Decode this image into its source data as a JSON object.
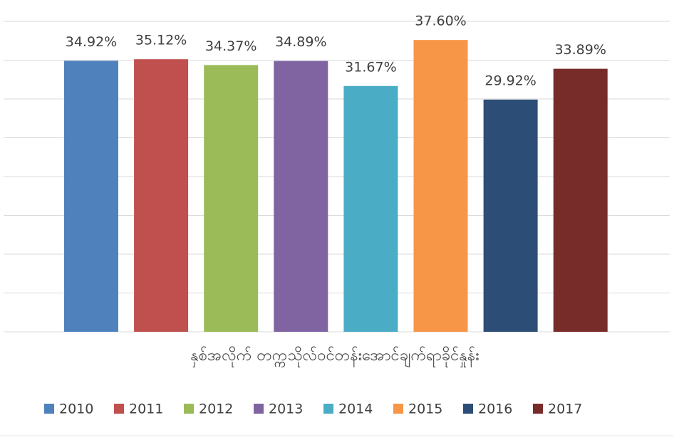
{
  "chart_data": {
    "type": "bar",
    "x_label": "နှစ်အလိုက် တက္ကသိုလ်ဝင်တန်းအောင်ချက်ရာခိုင်နှုန်း",
    "categories": [
      null
    ],
    "series": [
      {
        "name": "2010",
        "color": "#4f81bd",
        "values": [
          34.92
        ],
        "value_labels": [
          "34.92%"
        ]
      },
      {
        "name": "2011",
        "color": "#c0504d",
        "values": [
          35.12
        ],
        "value_labels": [
          "35.12%"
        ]
      },
      {
        "name": "2012",
        "color": "#9bbb59",
        "values": [
          34.37
        ],
        "value_labels": [
          "34.37%"
        ]
      },
      {
        "name": "2013",
        "color": "#8064a2",
        "values": [
          34.89
        ],
        "value_labels": [
          "34.89%"
        ]
      },
      {
        "name": "2014",
        "color": "#4bacc6",
        "values": [
          31.67
        ],
        "value_labels": [
          "31.67%"
        ]
      },
      {
        "name": "2015",
        "color": "#f79646",
        "values": [
          37.6
        ],
        "value_labels": [
          "37.60%"
        ]
      },
      {
        "name": "2016",
        "color": "#2c4d75",
        "values": [
          29.92
        ],
        "value_labels": [
          "29.92%"
        ]
      },
      {
        "name": "2017",
        "color": "#772c2a",
        "values": [
          33.89
        ],
        "value_labels": [
          "33.89%"
        ]
      }
    ],
    "ylim": [
      0,
      40
    ],
    "yticks": [
      0,
      5,
      10,
      15,
      20,
      25,
      30,
      35,
      40
    ],
    "grid": true,
    "legend": "bottom"
  }
}
